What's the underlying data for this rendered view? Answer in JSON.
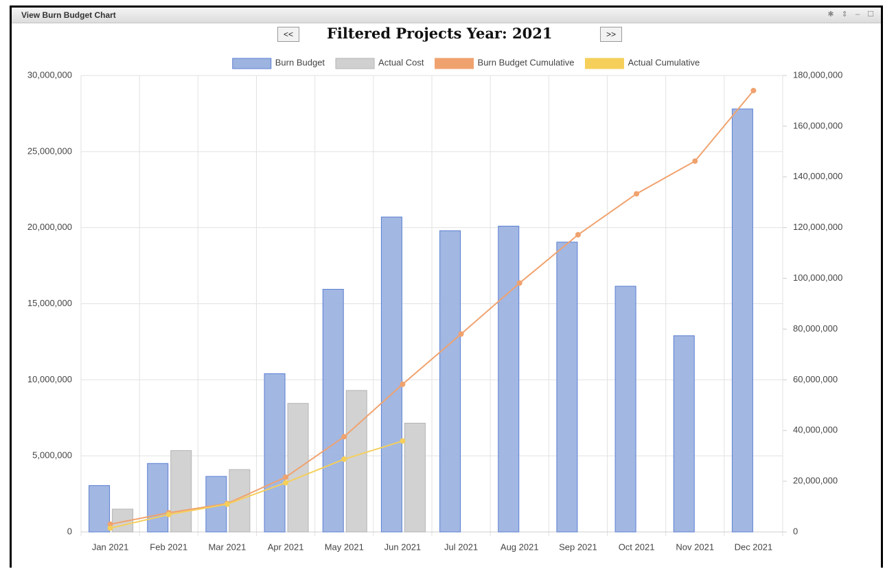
{
  "chart_data": {
    "type": "bar",
    "panel_title": "View Burn Budget Chart",
    "title": "Filtered Projects Year: 2021",
    "prev_label": "<<",
    "next_label": ">>",
    "categories": [
      "Jan 2021",
      "Feb 2021",
      "Mar 2021",
      "Apr 2021",
      "May 2021",
      "Jun 2021",
      "Jul 2021",
      "Aug 2021",
      "Sep 2021",
      "Oct 2021",
      "Nov 2021",
      "Dec 2021"
    ],
    "series": [
      {
        "name": "Burn Budget",
        "type": "bar",
        "color": "#9db3e0",
        "stroke": "#5b7fd1",
        "values": [
          3050000,
          4500000,
          3650000,
          10400000,
          15950000,
          20700000,
          19800000,
          20100000,
          19050000,
          16150000,
          12900000,
          27800000
        ]
      },
      {
        "name": "Actual Cost",
        "type": "bar",
        "color": "#d0d0d0",
        "stroke": "#b4b4b4",
        "values": [
          1500000,
          5350000,
          4100000,
          8450000,
          9300000,
          7150000,
          null,
          null,
          null,
          null,
          null,
          null
        ]
      },
      {
        "name": "Burn Budget Cumulative",
        "type": "line",
        "axis": "y2",
        "color": "#f0a26e",
        "values": [
          3050000,
          7550000,
          11200000,
          21600000,
          37550000,
          58250000,
          78050000,
          98150000,
          117200000,
          133350000,
          146250000,
          174050000
        ]
      },
      {
        "name": "Actual Cumulative",
        "type": "line",
        "axis": "y2",
        "color": "#f5cf5a",
        "values": [
          1500000,
          6850000,
          10950000,
          19400000,
          28700000,
          35850000,
          null,
          null,
          null,
          null,
          null,
          null
        ]
      }
    ],
    "ylim": [
      0,
      30000000
    ],
    "yticks": [
      0,
      {
        "value": 5000000,
        "label": "5,000,000"
      },
      {
        "value": 10000000,
        "label": "10,000,000"
      },
      {
        "value": 15000000,
        "label": "15,000,000"
      },
      {
        "value": 20000000,
        "label": "20,000,000"
      },
      {
        "value": 25000000,
        "label": "25,000,000"
      },
      {
        "value": 30000000,
        "label": "30,000,000"
      }
    ],
    "y2lim": [
      0,
      180000000
    ],
    "y2ticks": [
      0,
      {
        "value": 20000000,
        "label": "20,000,000"
      },
      {
        "value": 40000000,
        "label": "40,000,000"
      },
      {
        "value": 60000000,
        "label": "60,000,000"
      },
      {
        "value": 80000000,
        "label": "80,000,000"
      },
      {
        "value": 100000000,
        "label": "100,000,000"
      },
      {
        "value": 120000000,
        "label": "120,000,000"
      },
      {
        "value": 140000000,
        "label": "140,000,000"
      },
      {
        "value": 160000000,
        "label": "160,000,000"
      },
      {
        "value": 180000000,
        "label": "180,000,000"
      }
    ],
    "grid": true,
    "legend": "top"
  }
}
